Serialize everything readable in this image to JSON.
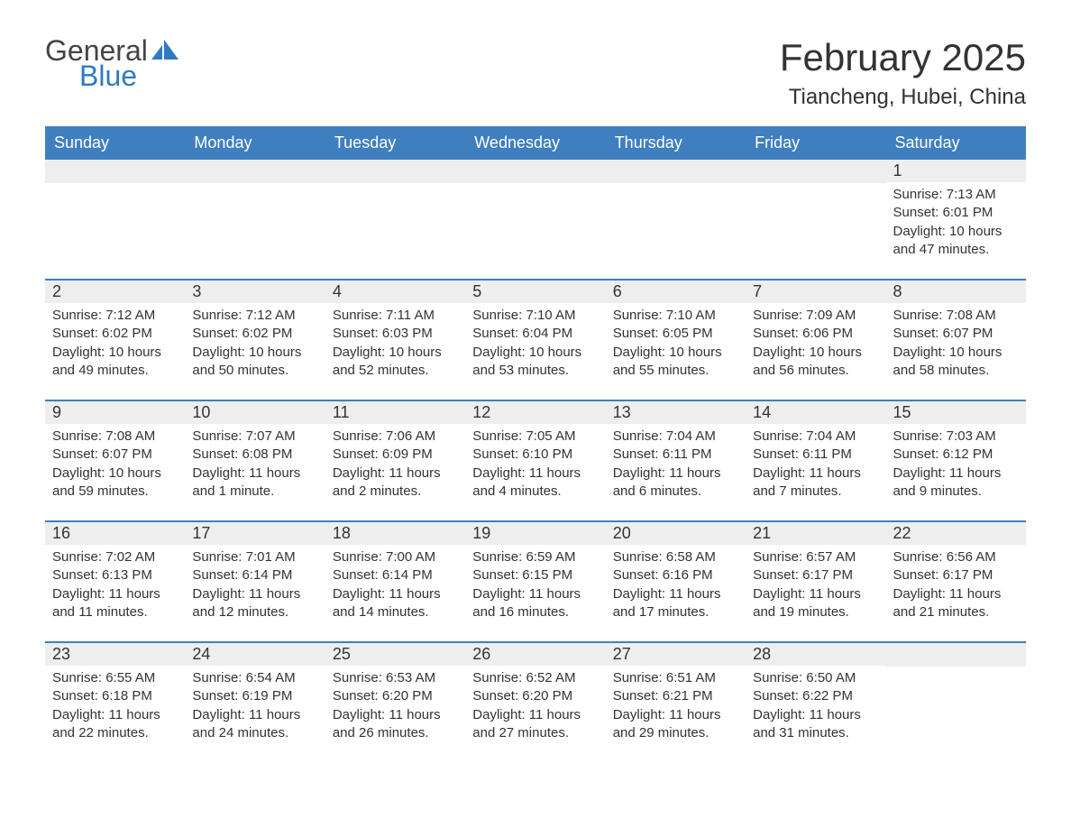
{
  "brand": {
    "word1": "General",
    "word2": "Blue",
    "colors": {
      "general": "#444444",
      "blue": "#2f7bbf",
      "icon_fill": "#2f7bbf"
    }
  },
  "title": "February 2025",
  "location": "Tiancheng, Hubei, China",
  "colors": {
    "header_bg": "#3f7fbf",
    "header_text": "#ffffff",
    "week_border": "#3f7fbf",
    "day_number_bg": "#eeeeee",
    "body_text": "#333333",
    "page_bg": "#ffffff"
  },
  "typography": {
    "month_title_fontsize": 42,
    "location_fontsize": 24,
    "weekday_fontsize": 18,
    "day_number_fontsize": 18,
    "detail_fontsize": 15,
    "logo_fontsize": 32
  },
  "weekdays": [
    "Sunday",
    "Monday",
    "Tuesday",
    "Wednesday",
    "Thursday",
    "Friday",
    "Saturday"
  ],
  "weeks": [
    [
      {
        "empty": true
      },
      {
        "empty": true
      },
      {
        "empty": true
      },
      {
        "empty": true
      },
      {
        "empty": true
      },
      {
        "empty": true
      },
      {
        "day": 1,
        "sunrise": "7:13 AM",
        "sunset": "6:01 PM",
        "daylight": "10 hours and 47 minutes."
      }
    ],
    [
      {
        "day": 2,
        "sunrise": "7:12 AM",
        "sunset": "6:02 PM",
        "daylight": "10 hours and 49 minutes."
      },
      {
        "day": 3,
        "sunrise": "7:12 AM",
        "sunset": "6:02 PM",
        "daylight": "10 hours and 50 minutes."
      },
      {
        "day": 4,
        "sunrise": "7:11 AM",
        "sunset": "6:03 PM",
        "daylight": "10 hours and 52 minutes."
      },
      {
        "day": 5,
        "sunrise": "7:10 AM",
        "sunset": "6:04 PM",
        "daylight": "10 hours and 53 minutes."
      },
      {
        "day": 6,
        "sunrise": "7:10 AM",
        "sunset": "6:05 PM",
        "daylight": "10 hours and 55 minutes."
      },
      {
        "day": 7,
        "sunrise": "7:09 AM",
        "sunset": "6:06 PM",
        "daylight": "10 hours and 56 minutes."
      },
      {
        "day": 8,
        "sunrise": "7:08 AM",
        "sunset": "6:07 PM",
        "daylight": "10 hours and 58 minutes."
      }
    ],
    [
      {
        "day": 9,
        "sunrise": "7:08 AM",
        "sunset": "6:07 PM",
        "daylight": "10 hours and 59 minutes."
      },
      {
        "day": 10,
        "sunrise": "7:07 AM",
        "sunset": "6:08 PM",
        "daylight": "11 hours and 1 minute."
      },
      {
        "day": 11,
        "sunrise": "7:06 AM",
        "sunset": "6:09 PM",
        "daylight": "11 hours and 2 minutes."
      },
      {
        "day": 12,
        "sunrise": "7:05 AM",
        "sunset": "6:10 PM",
        "daylight": "11 hours and 4 minutes."
      },
      {
        "day": 13,
        "sunrise": "7:04 AM",
        "sunset": "6:11 PM",
        "daylight": "11 hours and 6 minutes."
      },
      {
        "day": 14,
        "sunrise": "7:04 AM",
        "sunset": "6:11 PM",
        "daylight": "11 hours and 7 minutes."
      },
      {
        "day": 15,
        "sunrise": "7:03 AM",
        "sunset": "6:12 PM",
        "daylight": "11 hours and 9 minutes."
      }
    ],
    [
      {
        "day": 16,
        "sunrise": "7:02 AM",
        "sunset": "6:13 PM",
        "daylight": "11 hours and 11 minutes."
      },
      {
        "day": 17,
        "sunrise": "7:01 AM",
        "sunset": "6:14 PM",
        "daylight": "11 hours and 12 minutes."
      },
      {
        "day": 18,
        "sunrise": "7:00 AM",
        "sunset": "6:14 PM",
        "daylight": "11 hours and 14 minutes."
      },
      {
        "day": 19,
        "sunrise": "6:59 AM",
        "sunset": "6:15 PM",
        "daylight": "11 hours and 16 minutes."
      },
      {
        "day": 20,
        "sunrise": "6:58 AM",
        "sunset": "6:16 PM",
        "daylight": "11 hours and 17 minutes."
      },
      {
        "day": 21,
        "sunrise": "6:57 AM",
        "sunset": "6:17 PM",
        "daylight": "11 hours and 19 minutes."
      },
      {
        "day": 22,
        "sunrise": "6:56 AM",
        "sunset": "6:17 PM",
        "daylight": "11 hours and 21 minutes."
      }
    ],
    [
      {
        "day": 23,
        "sunrise": "6:55 AM",
        "sunset": "6:18 PM",
        "daylight": "11 hours and 22 minutes."
      },
      {
        "day": 24,
        "sunrise": "6:54 AM",
        "sunset": "6:19 PM",
        "daylight": "11 hours and 24 minutes."
      },
      {
        "day": 25,
        "sunrise": "6:53 AM",
        "sunset": "6:20 PM",
        "daylight": "11 hours and 26 minutes."
      },
      {
        "day": 26,
        "sunrise": "6:52 AM",
        "sunset": "6:20 PM",
        "daylight": "11 hours and 27 minutes."
      },
      {
        "day": 27,
        "sunrise": "6:51 AM",
        "sunset": "6:21 PM",
        "daylight": "11 hours and 29 minutes."
      },
      {
        "day": 28,
        "sunrise": "6:50 AM",
        "sunset": "6:22 PM",
        "daylight": "11 hours and 31 minutes."
      },
      {
        "empty": true
      }
    ]
  ],
  "labels": {
    "sunrise_prefix": "Sunrise: ",
    "sunset_prefix": "Sunset: ",
    "daylight_prefix": "Daylight: "
  }
}
